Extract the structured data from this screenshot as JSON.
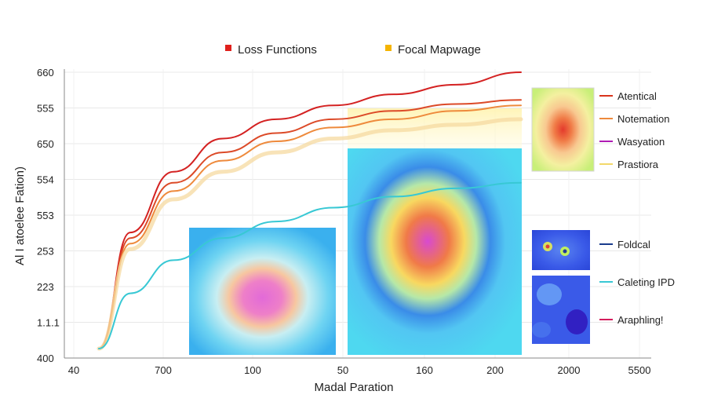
{
  "chart_data": {
    "type": "line",
    "title": "",
    "xlabel": "Madal Paration",
    "ylabel": "Al I atoelee Fation)",
    "legend_top": [
      {
        "label": "Loss Functions",
        "color": "#e0201c"
      },
      {
        "label": "Focal Mapwage",
        "color": "#f5b400"
      }
    ],
    "y_ticks": [
      "660",
      "555",
      "650",
      "554",
      "553",
      "253",
      "223",
      "1.1.1",
      "400"
    ],
    "x_ticks": [
      "40",
      "700",
      "100",
      "50",
      "160",
      "200",
      "2000",
      "5500"
    ],
    "series": [
      {
        "name": "",
        "color": "#d42222",
        "values": [
          0,
          0.42,
          0.64,
          0.76,
          0.83,
          0.88,
          0.92,
          0.955,
          1.0
        ]
      },
      {
        "name": "",
        "color": "#dc4a28",
        "values": [
          0,
          0.4,
          0.6,
          0.71,
          0.78,
          0.83,
          0.86,
          0.885,
          0.9
        ]
      },
      {
        "name": "",
        "color": "#ee8a3c",
        "values": [
          0,
          0.38,
          0.57,
          0.68,
          0.75,
          0.8,
          0.83,
          0.86,
          0.88
        ]
      },
      {
        "name": "",
        "color": "#f6d9a0",
        "values": [
          0,
          0.36,
          0.54,
          0.64,
          0.71,
          0.76,
          0.79,
          0.81,
          0.83
        ]
      },
      {
        "name": "",
        "color": "#38c8d4",
        "values": [
          0,
          0.2,
          0.32,
          0.4,
          0.46,
          0.51,
          0.55,
          0.58,
          0.6
        ]
      }
    ],
    "right_legend_top": [
      {
        "label": "Atentical",
        "color": "#d9341c"
      },
      {
        "label": "Notemation",
        "color": "#ee8a3c"
      },
      {
        "label": "Wasyation",
        "color": "#b01cb4"
      },
      {
        "label": "Prastiora",
        "color": "#f2d86a"
      }
    ],
    "right_legend_bottom": [
      {
        "label": "Foldcal",
        "color": "#1a3c8c"
      },
      {
        "label": "Caleting IPD",
        "color": "#38c8d4"
      },
      {
        "label": "Araphling!",
        "color": "#d41c5c"
      }
    ],
    "grid": true
  }
}
